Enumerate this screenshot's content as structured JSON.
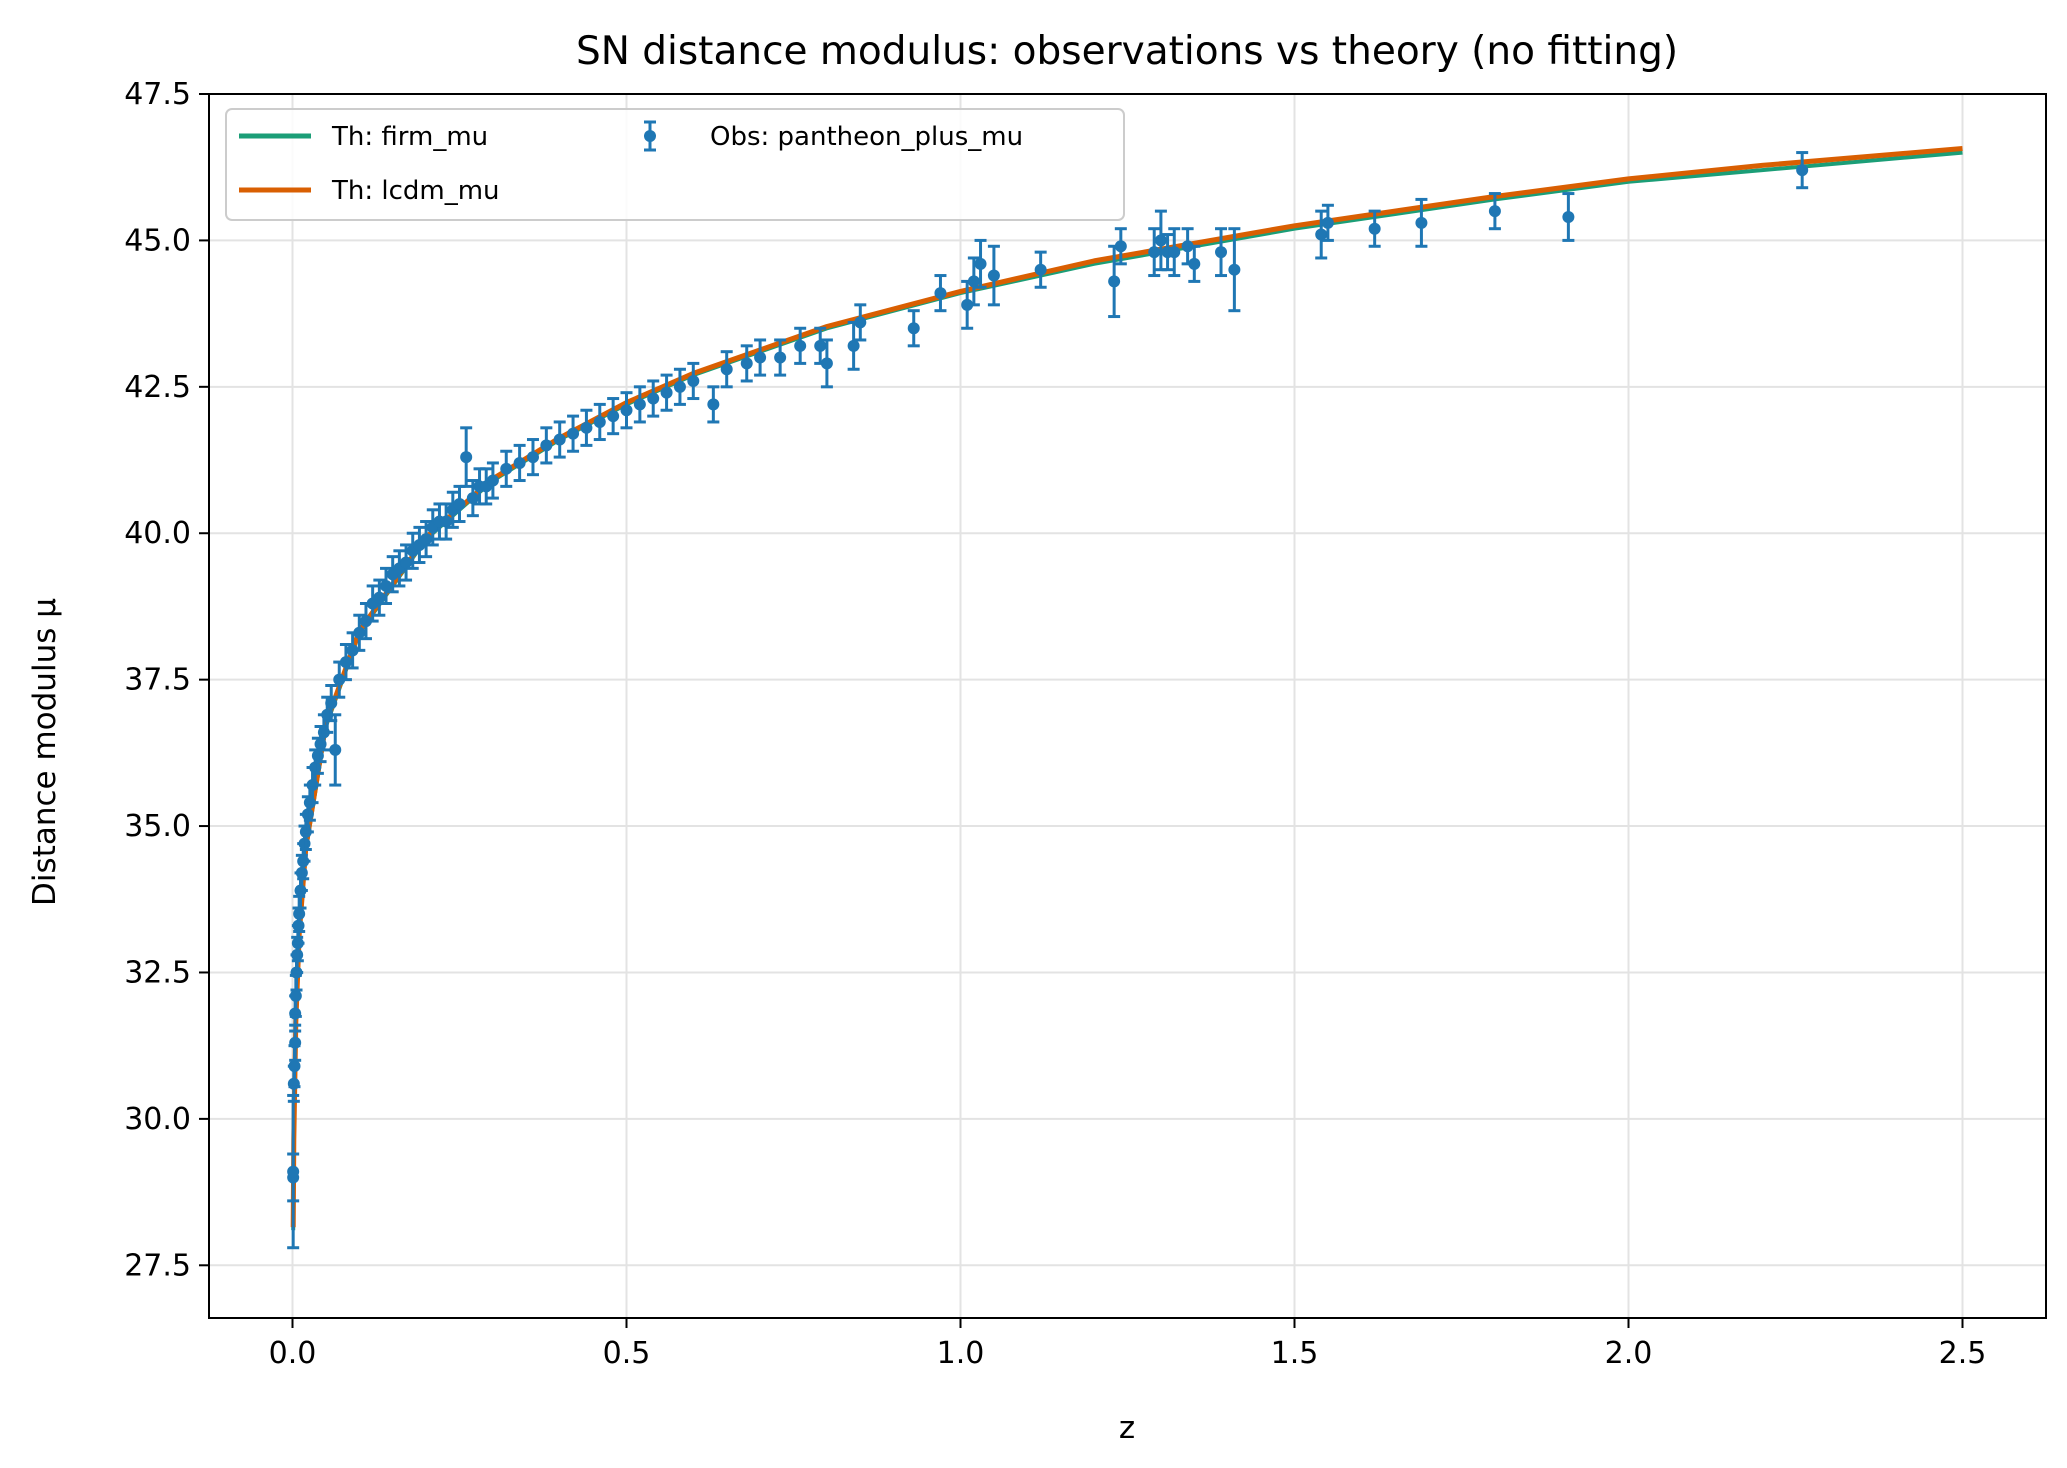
{
  "chart_data": {
    "type": "scatter",
    "title": "SN distance modulus: observations vs theory (no fitting)",
    "xlabel": "z",
    "ylabel": "Distance modulus μ",
    "xlim": [
      -0.125,
      2.625
    ],
    "ylim": [
      26.6,
      47.5
    ],
    "xticks": [
      0.0,
      0.5,
      1.0,
      1.5,
      2.0,
      2.5
    ],
    "xtick_labels": [
      "0.0",
      "0.5",
      "1.0",
      "1.5",
      "2.0",
      "2.5"
    ],
    "yticks": [
      27.5,
      30.0,
      32.5,
      35.0,
      37.5,
      40.0,
      42.5,
      45.0,
      47.5
    ],
    "ytick_labels": [
      "27.5",
      "30.0",
      "32.5",
      "35.0",
      "37.5",
      "40.0",
      "42.5",
      "45.0",
      "47.5"
    ],
    "grid": true,
    "legend_position": "upper-left",
    "legend": [
      {
        "label": "Th: firm_mu",
        "color": "#1b9e77",
        "kind": "line"
      },
      {
        "label": "Th: lcdm_mu",
        "color": "#d95f02",
        "kind": "line"
      },
      {
        "label": "Obs: pantheon_plus_mu",
        "color": "#1f77b4",
        "kind": "errorbar"
      }
    ],
    "series": [
      {
        "name": "Th: firm_mu",
        "type": "line",
        "color": "#1b9e77",
        "x": [
          0.001,
          0.002,
          0.005,
          0.01,
          0.02,
          0.05,
          0.1,
          0.2,
          0.3,
          0.4,
          0.5,
          0.6,
          0.8,
          1.0,
          1.2,
          1.5,
          1.8,
          2.0,
          2.2,
          2.5
        ],
        "y": [
          28.1,
          29.6,
          31.6,
          33.1,
          34.6,
          36.7,
          38.3,
          39.9,
          40.9,
          41.6,
          42.2,
          42.7,
          43.5,
          44.1,
          44.6,
          45.2,
          45.7,
          46.0,
          46.2,
          46.5
        ]
      },
      {
        "name": "Th: lcdm_mu",
        "type": "line",
        "color": "#d95f02",
        "x": [
          0.001,
          0.002,
          0.005,
          0.01,
          0.02,
          0.05,
          0.1,
          0.2,
          0.3,
          0.4,
          0.5,
          0.6,
          0.8,
          1.0,
          1.2,
          1.5,
          1.8,
          2.0,
          2.2,
          2.5
        ],
        "y": [
          28.15,
          29.65,
          31.65,
          33.15,
          34.65,
          36.75,
          38.33,
          39.93,
          40.93,
          41.63,
          42.23,
          42.73,
          43.53,
          44.13,
          44.65,
          45.25,
          45.75,
          46.05,
          46.28,
          46.57
        ]
      },
      {
        "name": "Obs: pantheon_plus_mu",
        "type": "errorbar",
        "color": "#1f77b4",
        "points": [
          [
            0.001,
            29.0,
            0.4
          ],
          [
            0.001,
            29.1,
            1.3
          ],
          [
            0.002,
            30.6,
            0.3
          ],
          [
            0.003,
            30.9,
            0.35
          ],
          [
            0.004,
            31.3,
            0.3
          ],
          [
            0.004,
            31.8,
            0.3
          ],
          [
            0.005,
            32.1,
            0.35
          ],
          [
            0.006,
            32.5,
            0.3
          ],
          [
            0.007,
            32.8,
            0.3
          ],
          [
            0.008,
            33.0,
            0.3
          ],
          [
            0.009,
            33.3,
            0.3
          ],
          [
            0.01,
            33.5,
            0.3
          ],
          [
            0.012,
            33.9,
            0.3
          ],
          [
            0.014,
            34.2,
            0.3
          ],
          [
            0.016,
            34.4,
            0.3
          ],
          [
            0.018,
            34.7,
            0.3
          ],
          [
            0.02,
            34.9,
            0.3
          ],
          [
            0.023,
            35.2,
            0.3
          ],
          [
            0.026,
            35.4,
            0.3
          ],
          [
            0.03,
            35.7,
            0.3
          ],
          [
            0.034,
            36.0,
            0.3
          ],
          [
            0.038,
            36.2,
            0.3
          ],
          [
            0.042,
            36.4,
            0.3
          ],
          [
            0.047,
            36.6,
            0.3
          ],
          [
            0.052,
            36.9,
            0.3
          ],
          [
            0.058,
            37.1,
            0.3
          ],
          [
            0.064,
            36.3,
            0.6
          ],
          [
            0.07,
            37.5,
            0.3
          ],
          [
            0.08,
            37.8,
            0.3
          ],
          [
            0.09,
            38.0,
            0.3
          ],
          [
            0.1,
            38.3,
            0.3
          ],
          [
            0.11,
            38.5,
            0.3
          ],
          [
            0.12,
            38.8,
            0.3
          ],
          [
            0.13,
            38.9,
            0.3
          ],
          [
            0.14,
            39.1,
            0.3
          ],
          [
            0.15,
            39.3,
            0.3
          ],
          [
            0.16,
            39.4,
            0.3
          ],
          [
            0.17,
            39.5,
            0.3
          ],
          [
            0.18,
            39.7,
            0.3
          ],
          [
            0.19,
            39.8,
            0.3
          ],
          [
            0.2,
            39.9,
            0.3
          ],
          [
            0.21,
            40.1,
            0.3
          ],
          [
            0.22,
            40.2,
            0.3
          ],
          [
            0.23,
            40.2,
            0.3
          ],
          [
            0.24,
            40.4,
            0.3
          ],
          [
            0.25,
            40.5,
            0.3
          ],
          [
            0.26,
            41.3,
            0.5
          ],
          [
            0.27,
            40.6,
            0.3
          ],
          [
            0.28,
            40.8,
            0.3
          ],
          [
            0.29,
            40.8,
            0.3
          ],
          [
            0.3,
            40.9,
            0.3
          ],
          [
            0.32,
            41.1,
            0.3
          ],
          [
            0.34,
            41.2,
            0.3
          ],
          [
            0.36,
            41.3,
            0.3
          ],
          [
            0.38,
            41.5,
            0.3
          ],
          [
            0.4,
            41.6,
            0.3
          ],
          [
            0.42,
            41.7,
            0.3
          ],
          [
            0.44,
            41.8,
            0.3
          ],
          [
            0.46,
            41.9,
            0.3
          ],
          [
            0.48,
            42.0,
            0.3
          ],
          [
            0.5,
            42.1,
            0.3
          ],
          [
            0.52,
            42.2,
            0.3
          ],
          [
            0.54,
            42.3,
            0.3
          ],
          [
            0.56,
            42.4,
            0.3
          ],
          [
            0.58,
            42.5,
            0.3
          ],
          [
            0.6,
            42.6,
            0.3
          ],
          [
            0.63,
            42.2,
            0.3
          ],
          [
            0.65,
            42.8,
            0.3
          ],
          [
            0.68,
            42.9,
            0.3
          ],
          [
            0.7,
            43.0,
            0.3
          ],
          [
            0.73,
            43.0,
            0.3
          ],
          [
            0.76,
            43.2,
            0.3
          ],
          [
            0.79,
            43.2,
            0.3
          ],
          [
            0.8,
            42.9,
            0.4
          ],
          [
            0.84,
            43.2,
            0.4
          ],
          [
            0.85,
            43.6,
            0.3
          ],
          [
            0.93,
            43.5,
            0.3
          ],
          [
            0.97,
            44.1,
            0.3
          ],
          [
            1.01,
            43.9,
            0.4
          ],
          [
            1.02,
            44.3,
            0.4
          ],
          [
            1.03,
            44.6,
            0.4
          ],
          [
            1.05,
            44.4,
            0.5
          ],
          [
            1.12,
            44.5,
            0.3
          ],
          [
            1.23,
            44.3,
            0.6
          ],
          [
            1.24,
            44.9,
            0.3
          ],
          [
            1.29,
            44.8,
            0.4
          ],
          [
            1.3,
            45.0,
            0.5
          ],
          [
            1.31,
            44.8,
            0.3
          ],
          [
            1.32,
            44.8,
            0.4
          ],
          [
            1.34,
            44.9,
            0.3
          ],
          [
            1.35,
            44.6,
            0.3
          ],
          [
            1.39,
            44.8,
            0.4
          ],
          [
            1.41,
            44.5,
            0.7
          ],
          [
            1.54,
            45.1,
            0.4
          ],
          [
            1.55,
            45.3,
            0.3
          ],
          [
            1.62,
            45.2,
            0.3
          ],
          [
            1.69,
            45.3,
            0.4
          ],
          [
            1.8,
            45.5,
            0.3
          ],
          [
            1.91,
            45.4,
            0.4
          ],
          [
            2.26,
            46.2,
            0.3
          ]
        ]
      }
    ]
  }
}
